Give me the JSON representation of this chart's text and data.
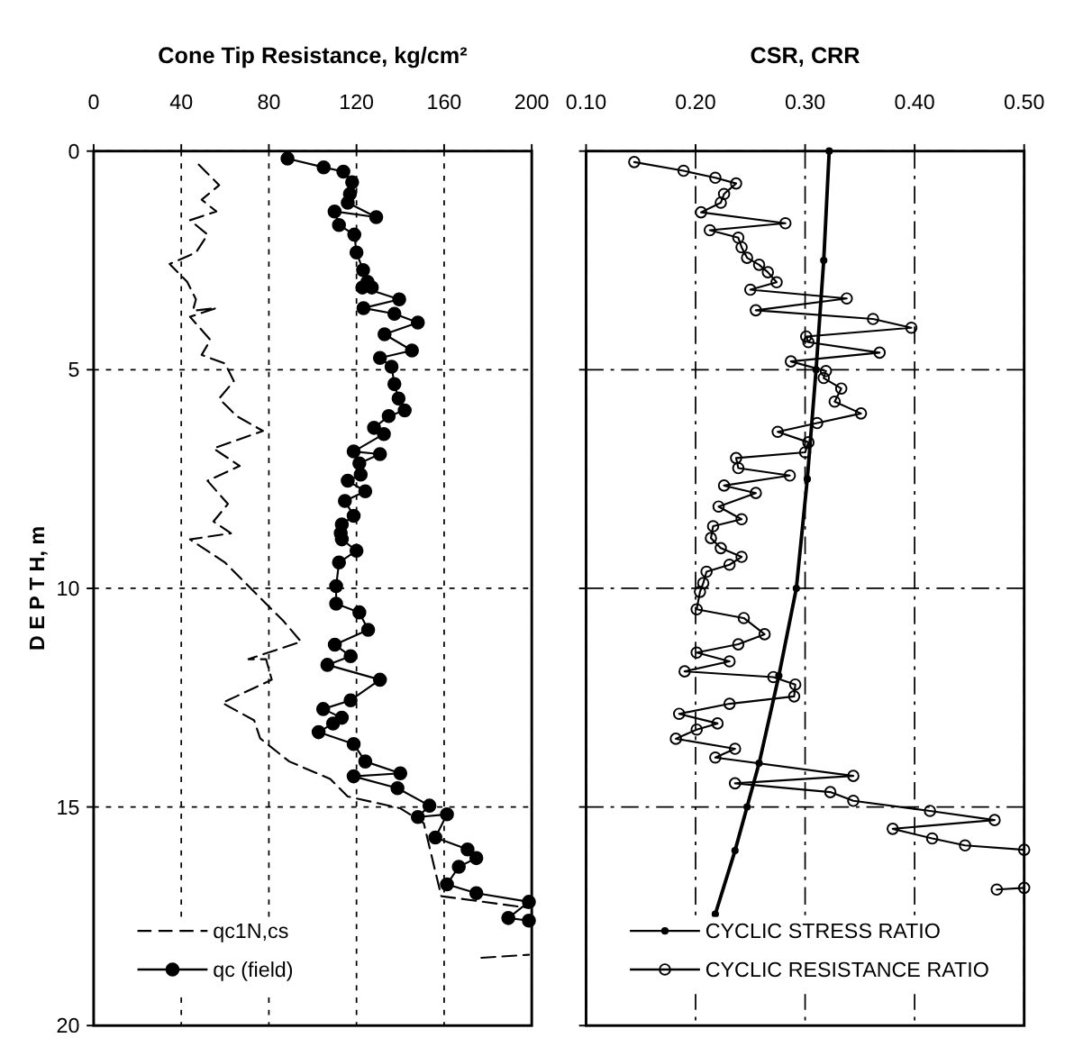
{
  "chart_data": [
    {
      "type": "line",
      "xlabel": "Cone Tip Resistance, kg/cm²",
      "ylabel": "D E P T H, m",
      "xlim": [
        0,
        200
      ],
      "xticks": [
        0,
        40,
        80,
        120,
        160,
        200
      ],
      "ylim": [
        20,
        0
      ],
      "yticks": [
        0,
        5,
        10,
        15,
        20
      ],
      "grid": true,
      "legend": "bottom left",
      "series": [
        {
          "name": "qc1N,cs",
          "color": "#000000",
          "line_style": "dashed",
          "marker": "none",
          "x": [
            48,
            57.3,
            49.3,
            56,
            44,
            52,
            46.7,
            34.7,
            42.7,
            46.7,
            45.3,
            56,
            44,
            53.3,
            49.3,
            60,
            64,
            57.3,
            65.3,
            77.3,
            54.7,
            66.7,
            52,
            61.3,
            54.7,
            62.7,
            44,
            60,
            68,
            73.3,
            86.7,
            94.7,
            70.7,
            78.7,
            81.3,
            58.7,
            73.3,
            76,
            89.3,
            108,
            116,
            140,
            150.7,
            158.7,
            198.7,
            null,
            177,
            198.7
          ],
          "values": [
            0.31,
            0.78,
            1.11,
            1.38,
            1.58,
            1.91,
            2.32,
            2.58,
            2.99,
            3.39,
            3.65,
            3.59,
            3.79,
            4.32,
            4.66,
            4.86,
            5.26,
            5.66,
            6.06,
            6.4,
            6.8,
            7.2,
            7.54,
            8.07,
            8.47,
            8.74,
            8.88,
            9.41,
            9.81,
            10.08,
            10.75,
            11.22,
            11.62,
            11.62,
            12.09,
            12.62,
            13.02,
            13.43,
            13.96,
            14.36,
            14.76,
            15.03,
            15.37,
            17.04,
            17.31,
            null,
            18.45,
            18.38
          ]
        },
        {
          "name": "qc (field)",
          "color": "#000000",
          "line_style": "solid",
          "marker": "circle",
          "x": [
            88.5,
            105,
            114,
            118,
            117,
            116,
            129,
            110,
            112,
            119,
            120,
            123,
            125,
            127,
            122.7,
            139.5,
            123.2,
            137.3,
            148,
            132.8,
            145.3,
            130.7,
            136,
            137.3,
            139.2,
            142,
            134.7,
            128,
            132.5,
            118.7,
            130.7,
            121.3,
            121.9,
            116,
            124,
            114.7,
            118.7,
            113.3,
            112.8,
            113.3,
            120,
            112,
            110.7,
            110.7,
            121.3,
            125.3,
            110.1,
            117.3,
            106.7,
            130.7,
            117.3,
            104.8,
            113.3,
            109.3,
            102.7,
            118.7,
            124,
            140,
            118.7,
            138.7,
            153.3,
            148,
            161.3,
            156,
            170.7,
            174.7,
            166.7,
            161.3,
            174.7,
            198.7,
            189.3,
            198.7
          ],
          "values": [
            0.17,
            0.37,
            0.47,
            0.71,
            0.98,
            1.18,
            1.51,
            1.38,
            1.69,
            1.91,
            2.32,
            2.72,
            2.99,
            3.12,
            3.12,
            3.39,
            3.59,
            3.72,
            3.92,
            4.19,
            4.56,
            4.73,
            4.93,
            5.33,
            5.66,
            5.93,
            6.06,
            6.33,
            6.47,
            6.87,
            6.93,
            7.14,
            7.4,
            7.54,
            7.78,
            8,
            8.34,
            8.54,
            8.74,
            8.88,
            9.14,
            9.41,
            9.95,
            10.35,
            10.55,
            10.95,
            11.29,
            11.55,
            11.75,
            12.09,
            12.56,
            12.76,
            12.96,
            13.09,
            13.29,
            13.56,
            13.96,
            14.23,
            14.3,
            14.57,
            14.97,
            15.23,
            15.17,
            15.7,
            15.97,
            16.17,
            16.37,
            16.77,
            16.97,
            17.17,
            17.54,
            17.6
          ]
        }
      ]
    },
    {
      "type": "line",
      "xlabel": "CSR, CRR",
      "xlim": [
        0.1,
        0.5
      ],
      "xticks": [
        {
          "value": 0.1,
          "label": "0.10"
        },
        {
          "value": 0.2,
          "label": "0.20"
        },
        {
          "value": 0.3,
          "label": "0.30"
        },
        {
          "value": 0.4,
          "label": "0.40"
        },
        {
          "value": 0.5,
          "label": "0.50"
        }
      ],
      "ylim": [
        20,
        0
      ],
      "yticks": [
        0,
        5,
        10,
        15,
        20
      ],
      "tick_labels": "x",
      "grid": true,
      "legend": "bottom left",
      "series": [
        {
          "name": "CYCLIC STRESS RATIO",
          "color": "#000000",
          "line_style": "solid",
          "marker": "circle",
          "x": [
            0.322,
            0.317,
            0.31,
            0.302,
            0.292,
            0.276,
            0.258,
            0.247,
            0.236,
            0.218
          ],
          "values": [
            0,
            2.5,
            5,
            7.5,
            10,
            12,
            14,
            15,
            16,
            17.45
          ]
        },
        {
          "name": "CYCLIC RESISTANCE RATIO",
          "color": "#000000",
          "line_style": "solid",
          "marker": "circle",
          "x": [
            0.144,
            0.189,
            0.218,
            0.237,
            0.226,
            0.223,
            0.205,
            0.282,
            0.213,
            0.239,
            0.242,
            0.247,
            0.258,
            0.266,
            0.274,
            0.25,
            0.338,
            0.255,
            0.362,
            0.397,
            0.301,
            0.303,
            0.368,
            0.287,
            0.319,
            0.317,
            0.333,
            0.327,
            0.351,
            0.311,
            0.275,
            0.303,
            0.3,
            0.237,
            0.239,
            0.286,
            0.226,
            0.255,
            0.221,
            0.242,
            0.216,
            0.214,
            0.223,
            0.242,
            0.231,
            0.21,
            0.207,
            0.204,
            0.201,
            0.244,
            0.263,
            0.239,
            0.201,
            0.231,
            0.19,
            0.271,
            0.291,
            0.29,
            0.231,
            0.185,
            0.22,
            0.201,
            0.182,
            0.236,
            0.218,
            0.344,
            0.236,
            0.323,
            0.344,
            0.414,
            0.473,
            0.38,
            0.416,
            0.446,
            0.5,
            null,
            0.475,
            0.5
          ],
          "values": [
            0.25,
            0.45,
            0.61,
            0.74,
            0.98,
            1.18,
            1.4,
            1.65,
            1.81,
            1.98,
            2.2,
            2.44,
            2.6,
            2.77,
            3,
            3.17,
            3.37,
            3.64,
            3.84,
            4.04,
            4.24,
            4.37,
            4.61,
            4.81,
            5.03,
            5.19,
            5.43,
            5.73,
            6,
            6.22,
            6.42,
            6.66,
            6.89,
            7.02,
            7.25,
            7.42,
            7.65,
            7.82,
            8.13,
            8.42,
            8.58,
            8.85,
            9.08,
            9.28,
            9.46,
            9.62,
            9.88,
            10.08,
            10.48,
            10.68,
            11.05,
            11.28,
            11.47,
            11.67,
            11.9,
            12.03,
            12.2,
            12.47,
            12.64,
            12.87,
            13.09,
            13.23,
            13.44,
            13.67,
            13.87,
            14.29,
            14.46,
            14.66,
            14.86,
            15.09,
            15.3,
            15.5,
            15.72,
            15.88,
            15.98,
            null,
            16.89,
            16.85
          ]
        }
      ]
    }
  ]
}
